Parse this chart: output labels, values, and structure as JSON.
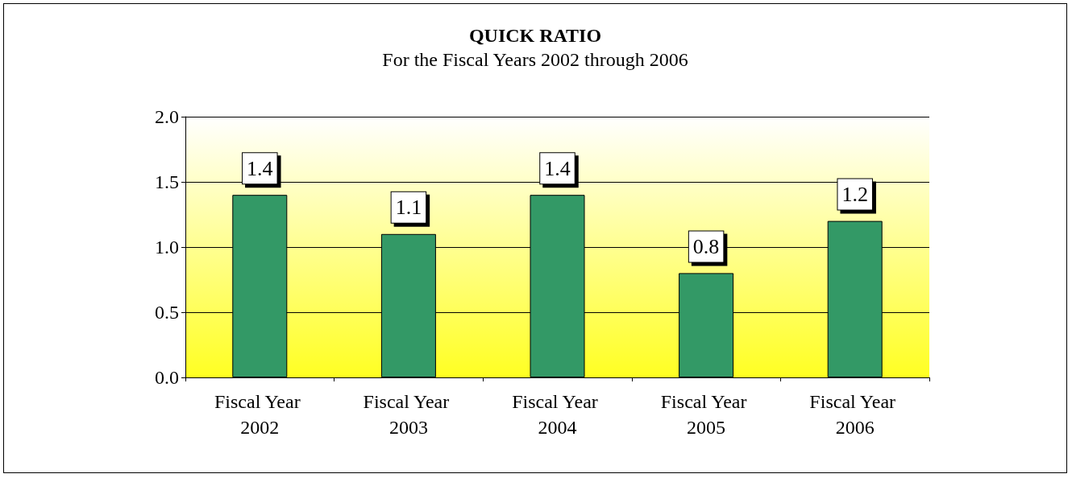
{
  "chart_data": {
    "type": "bar",
    "title": "QUICK RATIO",
    "subtitle": "For the Fiscal Years 2002 through 2006",
    "categories": [
      "Fiscal Year 2002",
      "Fiscal Year 2003",
      "Fiscal Year 2004",
      "Fiscal Year 2005",
      "Fiscal Year 2006"
    ],
    "values": [
      1.4,
      1.1,
      1.4,
      0.8,
      1.2
    ],
    "color": "#339966",
    "ylim": [
      0,
      2
    ],
    "yticks": [
      {
        "value": 0,
        "label": "0.0"
      },
      {
        "value": 0.5,
        "label": "0.5"
      },
      {
        "value": 1,
        "label": "1.0"
      },
      {
        "value": 1.5,
        "label": "1.5"
      },
      {
        "value": 2,
        "label": "2.0"
      }
    ],
    "grid": "y",
    "data_labels": true
  }
}
